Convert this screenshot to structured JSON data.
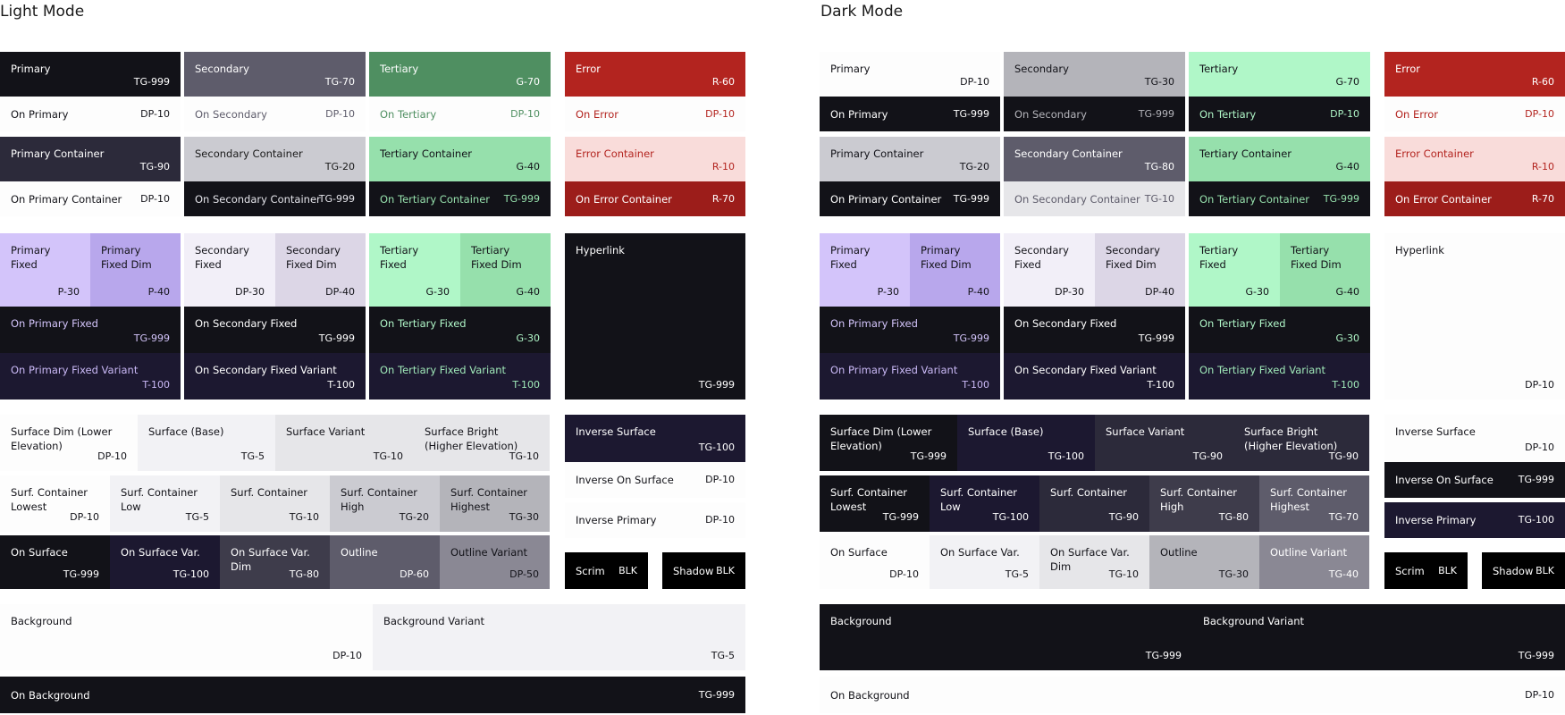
{
  "light": {
    "title": "Light Mode",
    "tiles": [
      {
        "name": "Primary",
        "code": "TG-999",
        "bg": "#121218",
        "fg": "#ffffff"
      },
      {
        "name": "Secondary",
        "code": "TG-70",
        "bg": "#5e5c6b",
        "fg": "#ffffff"
      },
      {
        "name": "Tertiary",
        "code": "G-70",
        "bg": "#4f8f61",
        "fg": "#ffffff"
      },
      {
        "name": "Error",
        "code": "R-60",
        "bg": "#b3241f",
        "fg": "#ffffff"
      },
      {
        "name": "On Primary",
        "code": "DP-10",
        "bg": "#fdfdfd",
        "fg": "#121218"
      },
      {
        "name": "On Secondary",
        "code": "DP-10",
        "bg": "#fdfdfd",
        "fg": "#5e5c6b"
      },
      {
        "name": "On Tertiary",
        "code": "DP-10",
        "bg": "#fdfdfd",
        "fg": "#4f8f61"
      },
      {
        "name": "On Error",
        "code": "DP-10",
        "bg": "#fdfdfd",
        "fg": "#b3241f"
      },
      {
        "name": "Primary Container",
        "code": "TG-90",
        "bg": "#2c2a3a",
        "fg": "#ffffff"
      },
      {
        "name": "Secondary Container",
        "code": "TG-20",
        "bg": "#cbcbd1",
        "fg": "#1a1a1a"
      },
      {
        "name": "Tertiary Container",
        "code": "G-40",
        "bg": "#96e0ac",
        "fg": "#121218"
      },
      {
        "name": "Error Container",
        "code": "R-10",
        "bg": "#f9dcda",
        "fg": "#b3241f"
      },
      {
        "name": "On Primary Container",
        "code": "DP-10",
        "bg": "#fdfdfd",
        "fg": "#121218"
      },
      {
        "name": "On Secondary Container",
        "code": "TG-999",
        "bg": "#121218",
        "fg": "#e4e4ea"
      },
      {
        "name": "On Tertiary Container",
        "code": "TG-999",
        "bg": "#121218",
        "fg": "#96e0ac"
      },
      {
        "name": "On Error Container",
        "code": "R-70",
        "bg": "#9c1d1a",
        "fg": "#ffffff"
      },
      {
        "name": "Primary\nFixed",
        "code": "P-30",
        "bg": "#d3c4fa",
        "fg": "#121218"
      },
      {
        "name": "Primary\nFixed Dim",
        "code": "P-40",
        "bg": "#b8a7ec",
        "fg": "#121218"
      },
      {
        "name": "Secondary\nFixed",
        "code": "DP-30",
        "bg": "#f2eff8",
        "fg": "#121218"
      },
      {
        "name": "Secondary\nFixed Dim",
        "code": "DP-40",
        "bg": "#dcd6e6",
        "fg": "#121218"
      },
      {
        "name": "Tertiary\nFixed",
        "code": "G-30",
        "bg": "#b0f7c8",
        "fg": "#121218"
      },
      {
        "name": "Tertiary\nFixed Dim",
        "code": "G-40",
        "bg": "#96e0ac",
        "fg": "#121218"
      },
      {
        "name": "On Primary Fixed",
        "code": "TG-999",
        "bg": "#121218",
        "fg": "#d3c4fa"
      },
      {
        "name": "On Secondary Fixed",
        "code": "TG-999",
        "bg": "#121218",
        "fg": "#ffffff"
      },
      {
        "name": "On Tertiary Fixed",
        "code": "G-30",
        "bg": "#121218",
        "fg": "#b0f7c8"
      },
      {
        "name": "On Primary Fixed Variant",
        "code": "T-100",
        "bg": "#1c1830",
        "fg": "#c9b8f5"
      },
      {
        "name": "On Secondary Fixed Variant",
        "code": "T-100",
        "bg": "#1c1830",
        "fg": "#ffffff"
      },
      {
        "name": "On Tertiary Fixed Variant",
        "code": "T-100",
        "bg": "#1c1830",
        "fg": "#9fe8b8"
      },
      {
        "name": "Hyperlink",
        "code": "TG-999",
        "bg": "#121218",
        "fg": "#ffffff"
      },
      {
        "name": "Surface Dim (Lower\nElevation)",
        "code": "DP-10",
        "bg": "#fdfdfd",
        "fg": "#121218"
      },
      {
        "name": "Surface (Base)",
        "code": "TG-5",
        "bg": "#f2f2f5",
        "fg": "#121218"
      },
      {
        "name": "Surface Variant",
        "code": "TG-10",
        "bg": "#e6e6e9",
        "fg": "#121218"
      },
      {
        "name": "Surface Bright\n(Higher Elevation)",
        "code": "TG-10",
        "bg": "#e6e6e9",
        "fg": "#121218"
      },
      {
        "name": "Inverse Surface",
        "code": "TG-100",
        "bg": "#1c1830",
        "fg": "#ffffff"
      },
      {
        "name": "Surf. Container\nLowest",
        "code": "DP-10",
        "bg": "#fdfdfd",
        "fg": "#121218"
      },
      {
        "name": "Surf. Container\nLow",
        "code": "TG-5",
        "bg": "#f2f2f5",
        "fg": "#121218"
      },
      {
        "name": "Surf. Container",
        "code": "TG-10",
        "bg": "#e6e6e9",
        "fg": "#121218"
      },
      {
        "name": "Surf. Container\nHigh",
        "code": "TG-20",
        "bg": "#cbcbd1",
        "fg": "#121218"
      },
      {
        "name": "Surf. Container\nHighest",
        "code": "TG-30",
        "bg": "#b4b4ba",
        "fg": "#121218"
      },
      {
        "name": "Inverse On Surface",
        "code": "DP-10",
        "bg": "#fdfdfd",
        "fg": "#121218"
      },
      {
        "name": "Inverse Primary",
        "code": "DP-10",
        "bg": "#fdfdfd",
        "fg": "#121218"
      },
      {
        "name": "On Surface",
        "code": "TG-999",
        "bg": "#121218",
        "fg": "#ffffff"
      },
      {
        "name": "On Surface Var.",
        "code": "TG-100",
        "bg": "#1c1830",
        "fg": "#ffffff"
      },
      {
        "name": "On Surface Var.\nDim",
        "code": "TG-80",
        "bg": "#3e3c4b",
        "fg": "#ffffff"
      },
      {
        "name": "Outline",
        "code": "DP-60",
        "bg": "#5e5c6b",
        "fg": "#ffffff"
      },
      {
        "name": "Outline Variant",
        "code": "DP-50",
        "bg": "#8a8894",
        "fg": "#121218"
      },
      {
        "name": "Scrim",
        "code": "BLK",
        "bg": "#000000",
        "fg": "#ffffff"
      },
      {
        "name": "Shadow",
        "code": "BLK",
        "bg": "#000000",
        "fg": "#ffffff"
      },
      {
        "name": "Background",
        "code": "DP-10",
        "bg": "#fdfdfd",
        "fg": "#121218"
      },
      {
        "name": "Background Variant",
        "code": "TG-5",
        "bg": "#f2f2f5",
        "fg": "#121218"
      },
      {
        "name": "On Background",
        "code": "TG-999",
        "bg": "#121218",
        "fg": "#ffffff"
      }
    ]
  },
  "dark": {
    "title": "Dark Mode",
    "tiles": [
      {
        "name": "Primary",
        "code": "DP-10",
        "bg": "#fdfdfd",
        "fg": "#121218"
      },
      {
        "name": "Secondary",
        "code": "TG-30",
        "bg": "#b4b4ba",
        "fg": "#121218"
      },
      {
        "name": "Tertiary",
        "code": "G-70",
        "bg": "#b0f7c8",
        "fg": "#121218"
      },
      {
        "name": "Error",
        "code": "R-60",
        "bg": "#b3241f",
        "fg": "#ffffff"
      },
      {
        "name": "On Primary",
        "code": "TG-999",
        "bg": "#121218",
        "fg": "#ffffff"
      },
      {
        "name": "On Secondary",
        "code": "TG-999",
        "bg": "#121218",
        "fg": "#b4b4ba"
      },
      {
        "name": "On Tertiary",
        "code": "DP-10",
        "bg": "#121218",
        "fg": "#b0f7c8"
      },
      {
        "name": "On Error",
        "code": "DP-10",
        "bg": "#fdfdfd",
        "fg": "#b3241f"
      },
      {
        "name": "Primary Container",
        "code": "TG-20",
        "bg": "#cbcbd1",
        "fg": "#121218"
      },
      {
        "name": "Secondary Container",
        "code": "TG-80",
        "bg": "#5e5c6b",
        "fg": "#ffffff"
      },
      {
        "name": "Tertiary Container",
        "code": "G-40",
        "bg": "#96e0ac",
        "fg": "#121218"
      },
      {
        "name": "Error Container",
        "code": "R-10",
        "bg": "#f9dcda",
        "fg": "#b3241f"
      },
      {
        "name": "On Primary Container",
        "code": "TG-999",
        "bg": "#121218",
        "fg": "#ffffff"
      },
      {
        "name": "On Secondary Container",
        "code": "TG-10",
        "bg": "#e6e6e9",
        "fg": "#5e5c6b"
      },
      {
        "name": "On Tertiary Container",
        "code": "TG-999",
        "bg": "#121218",
        "fg": "#96e0ac"
      },
      {
        "name": "On Error Container",
        "code": "R-70",
        "bg": "#9c1d1a",
        "fg": "#ffffff"
      },
      {
        "name": "Primary\nFixed",
        "code": "P-30",
        "bg": "#d3c4fa",
        "fg": "#121218"
      },
      {
        "name": "Primary\nFixed Dim",
        "code": "P-40",
        "bg": "#b8a7ec",
        "fg": "#121218"
      },
      {
        "name": "Secondary\nFixed",
        "code": "DP-30",
        "bg": "#f2eff8",
        "fg": "#121218"
      },
      {
        "name": "Secondary\nFixed Dim",
        "code": "DP-40",
        "bg": "#dcd6e6",
        "fg": "#121218"
      },
      {
        "name": "Tertiary\nFixed",
        "code": "G-30",
        "bg": "#b0f7c8",
        "fg": "#121218"
      },
      {
        "name": "Tertiary\nFixed Dim",
        "code": "G-40",
        "bg": "#96e0ac",
        "fg": "#121218"
      },
      {
        "name": "On Primary Fixed",
        "code": "TG-999",
        "bg": "#121218",
        "fg": "#d3c4fa"
      },
      {
        "name": "On Secondary Fixed",
        "code": "TG-999",
        "bg": "#121218",
        "fg": "#ffffff"
      },
      {
        "name": "On Tertiary Fixed",
        "code": "G-30",
        "bg": "#121218",
        "fg": "#b0f7c8"
      },
      {
        "name": "On Primary Fixed Variant",
        "code": "T-100",
        "bg": "#1c1830",
        "fg": "#c9b8f5"
      },
      {
        "name": "On Secondary Fixed Variant",
        "code": "T-100",
        "bg": "#1c1830",
        "fg": "#ffffff"
      },
      {
        "name": "On Tertiary Fixed Variant",
        "code": "T-100",
        "bg": "#1c1830",
        "fg": "#9fe8b8"
      },
      {
        "name": "Hyperlink",
        "code": "DP-10",
        "bg": "#fdfdfd",
        "fg": "#121218"
      },
      {
        "name": "Surface Dim (Lower\nElevation)",
        "code": "TG-999",
        "bg": "#121218",
        "fg": "#ffffff"
      },
      {
        "name": "Surface (Base)",
        "code": "TG-100",
        "bg": "#1c1830",
        "fg": "#ffffff"
      },
      {
        "name": "Surface Variant",
        "code": "TG-90",
        "bg": "#2c2a3a",
        "fg": "#ffffff"
      },
      {
        "name": "Surface Bright\n(Higher Elevation)",
        "code": "TG-90",
        "bg": "#2c2a3a",
        "fg": "#ffffff"
      },
      {
        "name": "Inverse Surface",
        "code": "DP-10",
        "bg": "#fdfdfd",
        "fg": "#121218"
      },
      {
        "name": "Surf. Container\nLowest",
        "code": "TG-999",
        "bg": "#121218",
        "fg": "#ffffff"
      },
      {
        "name": "Surf. Container\nLow",
        "code": "TG-100",
        "bg": "#1c1830",
        "fg": "#ffffff"
      },
      {
        "name": "Surf. Container",
        "code": "TG-90",
        "bg": "#2c2a3a",
        "fg": "#ffffff"
      },
      {
        "name": "Surf. Container\nHigh",
        "code": "TG-80",
        "bg": "#3e3c4b",
        "fg": "#ffffff"
      },
      {
        "name": "Surf. Container\nHighest",
        "code": "TG-70",
        "bg": "#5e5c6b",
        "fg": "#ffffff"
      },
      {
        "name": "Inverse On Surface",
        "code": "TG-999",
        "bg": "#121218",
        "fg": "#ffffff"
      },
      {
        "name": "Inverse Primary",
        "code": "TG-100",
        "bg": "#1c1830",
        "fg": "#ffffff"
      },
      {
        "name": "On Surface",
        "code": "DP-10",
        "bg": "#fdfdfd",
        "fg": "#121218"
      },
      {
        "name": "On Surface Var.",
        "code": "TG-5",
        "bg": "#f2f2f5",
        "fg": "#121218"
      },
      {
        "name": "On Surface Var.\nDim",
        "code": "TG-10",
        "bg": "#e6e6e9",
        "fg": "#121218"
      },
      {
        "name": "Outline",
        "code": "TG-30",
        "bg": "#b4b4ba",
        "fg": "#121218"
      },
      {
        "name": "Outline Variant",
        "code": "TG-40",
        "bg": "#8a8894",
        "fg": "#ffffff"
      },
      {
        "name": "Scrim",
        "code": "BLK",
        "bg": "#000000",
        "fg": "#ffffff"
      },
      {
        "name": "Shadow",
        "code": "BLK",
        "bg": "#000000",
        "fg": "#ffffff"
      },
      {
        "name": "Background",
        "code": "TG-999",
        "bg": "#121218",
        "fg": "#ffffff"
      },
      {
        "name": "Background Variant",
        "code": "TG-999",
        "bg": "#121218",
        "fg": "#ffffff"
      },
      {
        "name": "On Background",
        "code": "DP-10",
        "bg": "#fdfdfd",
        "fg": "#121218"
      }
    ]
  }
}
